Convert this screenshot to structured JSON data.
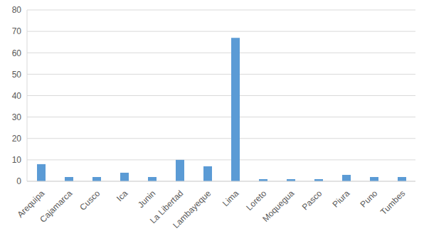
{
  "chart_data": {
    "type": "bar",
    "categories": [
      "Arequipa",
      "Cajamarca",
      "Cusco",
      "Ica",
      "Junin",
      "La Libertad",
      "Lambayeque",
      "Lima",
      "Loreto",
      "Moquegua",
      "Pasco",
      "Piura",
      "Puno",
      "Tumbes"
    ],
    "values": [
      8,
      2,
      2,
      4,
      2,
      10,
      7,
      67,
      1,
      1,
      1,
      3,
      2,
      2
    ],
    "color": "#5b9bd5",
    "ylim": [
      0,
      80
    ],
    "yticks": [
      0,
      10,
      20,
      30,
      40,
      50,
      60,
      70,
      80
    ],
    "grid": true
  }
}
